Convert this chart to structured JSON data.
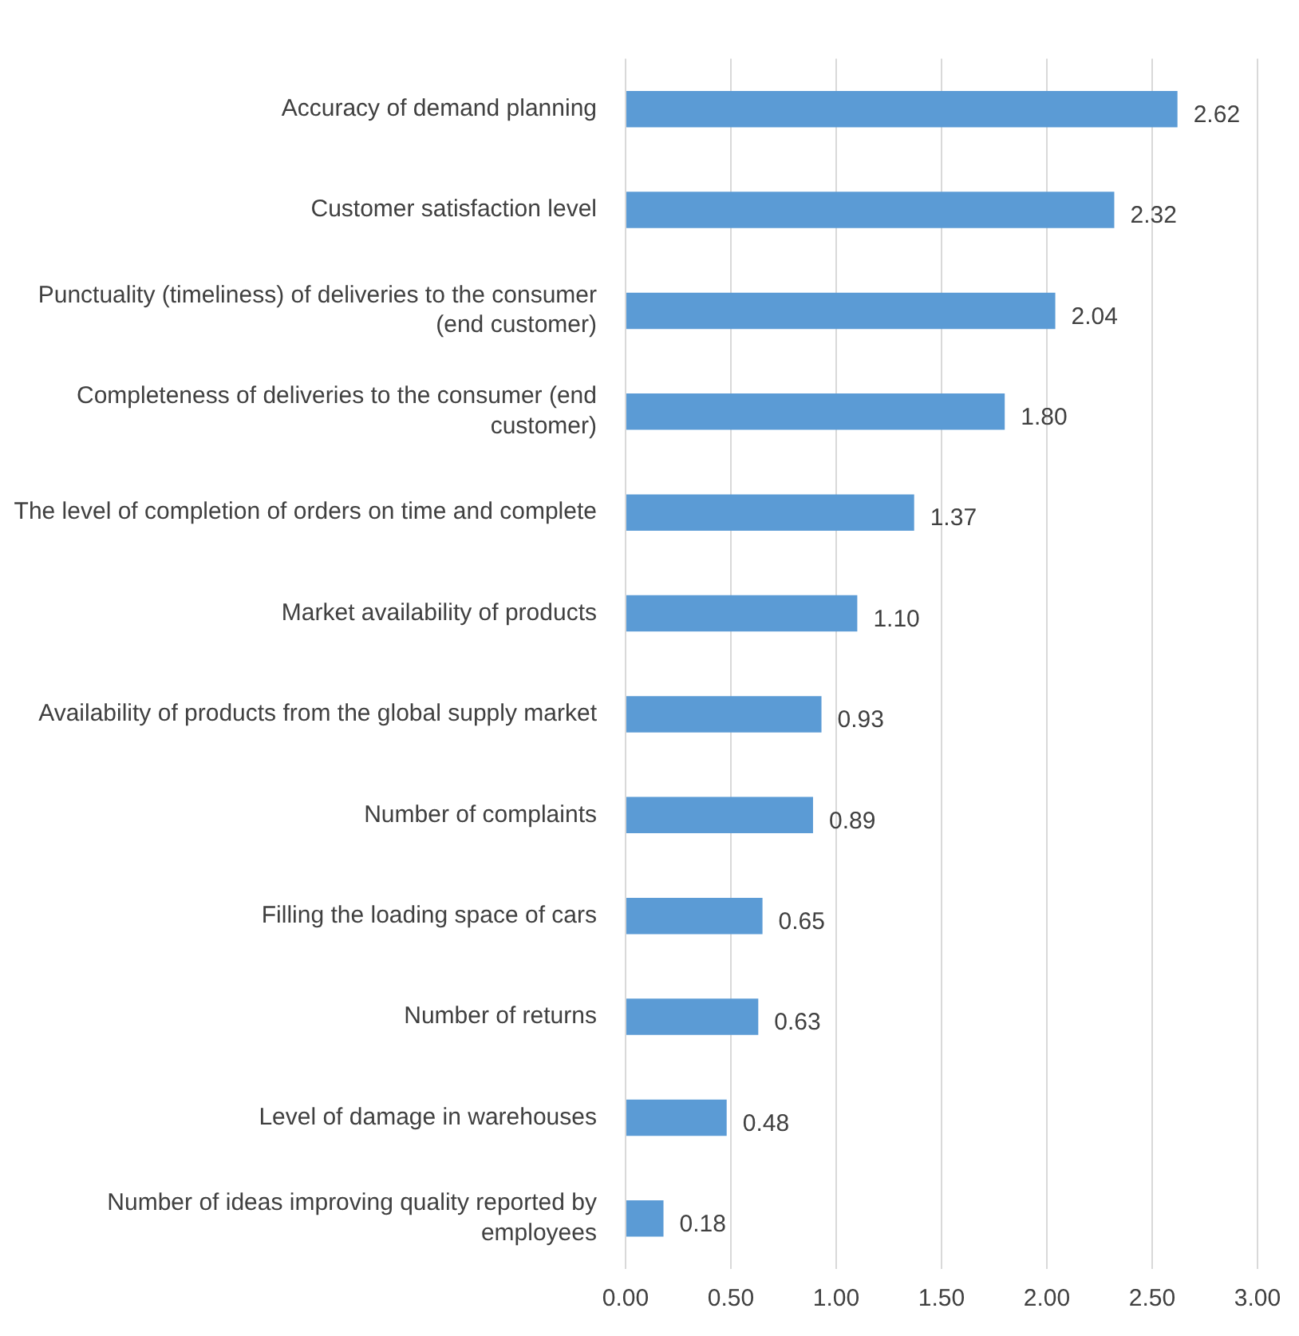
{
  "chart_data": {
    "type": "bar",
    "orientation": "horizontal",
    "categories": [
      "Accuracy of demand planning",
      "Customer satisfaction level",
      "Punctuality (timeliness) of deliveries to the consumer (end customer)",
      "Completeness of deliveries to the consumer (end customer)",
      "The level of completion of orders on time and complete",
      "Market availability of products",
      "Availability of products from the global supply market",
      "Number of complaints",
      "Filling the loading space of cars",
      "Number of returns",
      "Level of damage in warehouses",
      "Number of ideas improving quality reported by employees"
    ],
    "values": [
      2.62,
      2.32,
      2.04,
      1.8,
      1.37,
      1.1,
      0.93,
      0.89,
      0.65,
      0.63,
      0.48,
      0.18
    ],
    "value_labels": [
      "2.62",
      "2.32",
      "2.04",
      "1.80",
      "1.37",
      "1.10",
      "0.93",
      "0.89",
      "0.65",
      "0.63",
      "0.48",
      "0.18"
    ],
    "color": "#5b9bd5",
    "xlim": [
      0,
      3
    ],
    "xticks": [
      {
        "value": 0,
        "label": "0.00"
      },
      {
        "value": 0.5,
        "label": "0.50"
      },
      {
        "value": 1,
        "label": "1.00"
      },
      {
        "value": 1.5,
        "label": "1.50"
      },
      {
        "value": 2,
        "label": "2.00"
      },
      {
        "value": 2.5,
        "label": "2.50"
      },
      {
        "value": 3,
        "label": "3.00"
      }
    ],
    "grid": "x",
    "legend": false
  }
}
